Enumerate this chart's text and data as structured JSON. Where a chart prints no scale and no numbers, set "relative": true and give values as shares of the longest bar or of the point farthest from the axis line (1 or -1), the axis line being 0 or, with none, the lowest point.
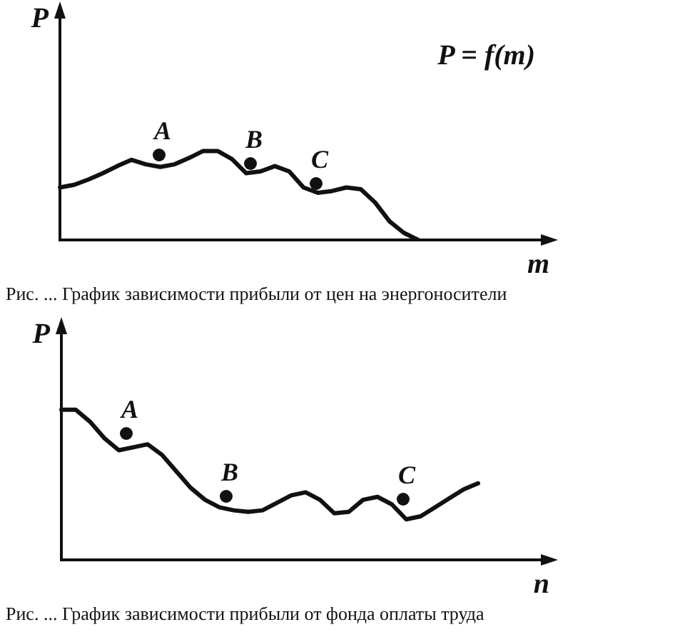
{
  "chart_data": [
    {
      "type": "line",
      "relative": true,
      "title": "Рис. ... График зависимости прибыли от цен на энергоносители",
      "xlabel": "m",
      "ylabel": "P",
      "annotations": [
        "P = f(m)",
        "A",
        "B",
        "C"
      ],
      "categories": [
        null,
        null,
        null,
        null,
        null,
        null,
        null,
        null,
        null,
        null,
        null,
        null,
        null,
        null,
        null,
        null,
        null,
        null,
        null,
        null,
        null,
        null,
        null,
        null,
        null,
        null
      ],
      "series": [
        {
          "type": "line",
          "color": "#111111",
          "values": [
            0.59,
            0.62,
            0.68,
            0.75,
            0.83,
            0.9,
            0.85,
            0.82,
            0.85,
            0.92,
            1,
            1,
            0.91,
            0.75,
            0.77,
            0.83,
            0.77,
            0.59,
            0.53,
            0.55,
            0.59,
            0.57,
            0.42,
            0.21,
            0.08,
            0
          ]
        }
      ]
    },
    {
      "type": "line",
      "relative": true,
      "title": "Рис. ... График зависимости прибыли от фонда оплаты труда",
      "xlabel": "n",
      "ylabel": "P",
      "annotations": [
        "A",
        "B",
        "C"
      ],
      "categories": [
        null,
        null,
        null,
        null,
        null,
        null,
        null,
        null,
        null,
        null,
        null,
        null,
        null,
        null,
        null,
        null,
        null,
        null,
        null,
        null,
        null,
        null,
        null,
        null,
        null,
        null,
        null,
        null,
        null,
        null
      ],
      "series": [
        {
          "type": "line",
          "color": "#111111",
          "values": [
            1,
            1,
            0.92,
            0.81,
            0.73,
            0.75,
            0.77,
            0.7,
            0.59,
            0.48,
            0.4,
            0.35,
            0.33,
            0.32,
            0.33,
            0.38,
            0.43,
            0.45,
            0.4,
            0.31,
            0.32,
            0.4,
            0.42,
            0.37,
            0.27,
            0.29,
            0.35,
            0.41,
            0.47,
            0.51
          ]
        }
      ]
    }
  ]
}
